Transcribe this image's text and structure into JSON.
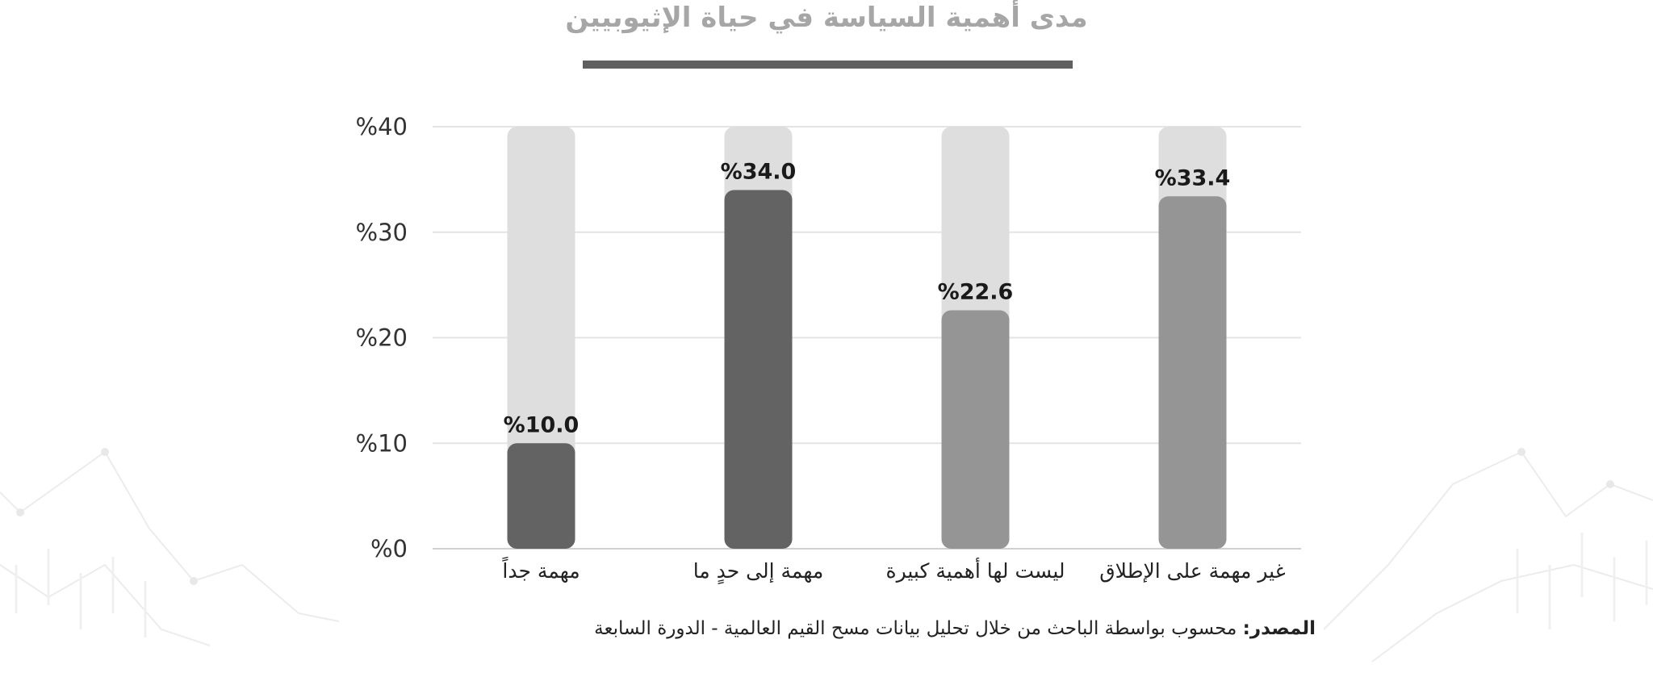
{
  "chart_data": {
    "type": "bar",
    "title": "مدى أهمية السياسة في حياة الإثيوبيين",
    "categories": [
      "مهمة جداً",
      "مهمة إلى حدٍ ما",
      "ليست لها أهمية كبيرة",
      "غير مهمة على الإطلاق"
    ],
    "values": [
      10.0,
      34.0,
      22.6,
      33.4
    ],
    "value_labels": [
      "%10.0",
      "%34.0",
      "%22.6",
      "%33.4"
    ],
    "y_ticks": [
      "%0",
      "%10",
      "%20",
      "%30",
      "%40"
    ],
    "ylim": [
      0,
      40
    ],
    "grid": true,
    "colors": {
      "bars": [
        "#636363",
        "#636363",
        "#959595",
        "#959595"
      ],
      "track": "#dedede",
      "grid": "#e4e4e4",
      "title": "#a6a6a6",
      "underline": "#5f5f5f"
    }
  },
  "source": {
    "label": "المصدر:",
    "text": "محسوب بواسطة الباحث من خلال تحليل بيانات مسح القيم العالمية - الدورة السابعة"
  }
}
